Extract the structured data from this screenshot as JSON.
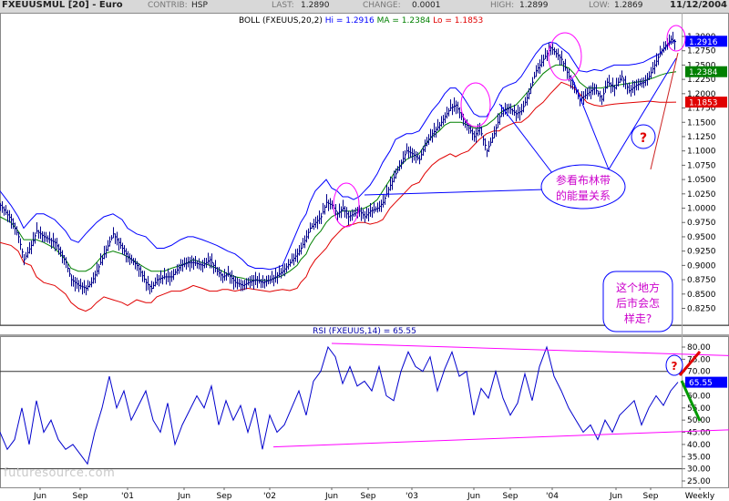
{
  "header": {
    "symbol": "FXEUUSMUL [20] - Euro",
    "contrib_label": "CONTRIB:",
    "contrib_value": "HSP",
    "last_label": "LAST:",
    "last_value": "1.2890",
    "change_label": "CHANGE:",
    "change_value": "0.0001",
    "high_label": "HIGH:",
    "high_value": "1.2899",
    "low_label": "LOW:",
    "low_value": "1.2869",
    "date": "11/12/2004"
  },
  "colors": {
    "price": "#00008b",
    "upper_band": "#0000ff",
    "ma": "#008000",
    "lower_band": "#e00000",
    "rsi": "#0000cd",
    "annotation": "#ff00ff",
    "callout_border": "#0000ff",
    "callout_text": "#cc00cc",
    "question": "#e00000"
  },
  "chart_data": [
    {
      "type": "candlestick",
      "title": "BOLL (FXEUUS,20,2)",
      "legend": [
        {
          "name": "Hi",
          "value": "1.2916"
        },
        {
          "name": "MA",
          "value": "1.2384"
        },
        {
          "name": "Lo",
          "value": "1.1853"
        }
      ],
      "ylim": [
        0.8,
        1.3
      ],
      "y_ticks": [
        "1.3000",
        "1.2750",
        "1.2500",
        "1.2250",
        "1.2000",
        "1.1750",
        "1.1500",
        "1.1250",
        "1.1000",
        "1.0750",
        "1.0500",
        "1.0250",
        "1.0000",
        "0.9750",
        "0.9500",
        "0.9250",
        "0.9000",
        "0.8750",
        "0.8500",
        "0.8250"
      ],
      "x_ticks": [
        "Jun",
        "Sep",
        "'01",
        "Jun",
        "Sep",
        "'02",
        "Jun",
        "Sep",
        "'03",
        "Jun",
        "Sep",
        "'04",
        "Jun",
        "Sep",
        "Weekly"
      ],
      "price_markers": [
        "1.2916",
        "1.2384",
        "1.1853"
      ],
      "x": [
        0,
        12,
        20,
        26,
        34,
        40,
        48,
        60,
        72,
        78,
        86,
        94,
        100,
        106,
        114,
        124,
        134,
        140,
        150,
        160,
        166,
        172,
        180,
        188,
        198,
        206,
        212,
        222,
        230,
        238,
        244,
        250,
        258,
        266,
        272,
        280,
        288,
        296,
        302,
        310,
        318,
        326,
        330,
        336,
        340,
        346,
        352,
        358,
        364,
        370,
        376,
        382,
        388,
        394,
        400,
        406,
        414,
        420,
        428,
        434,
        440,
        446,
        452,
        460,
        466,
        474,
        482,
        488,
        494,
        500,
        506,
        514,
        520,
        526,
        534,
        542,
        548,
        552,
        558,
        566,
        572,
        580,
        588,
        596,
        604,
        610,
        616,
        624,
        630,
        636,
        644,
        652,
        660,
        666,
        674,
        682,
        690,
        698,
        706,
        712,
        718,
        724,
        730,
        736,
        742
      ],
      "close": [
        1.005,
        0.98,
        0.95,
        0.91,
        0.935,
        0.96,
        0.95,
        0.94,
        0.905,
        0.875,
        0.865,
        0.86,
        0.87,
        0.89,
        0.92,
        0.955,
        0.93,
        0.915,
        0.9,
        0.87,
        0.86,
        0.875,
        0.88,
        0.88,
        0.9,
        0.905,
        0.905,
        0.9,
        0.91,
        0.89,
        0.88,
        0.885,
        0.87,
        0.865,
        0.87,
        0.875,
        0.87,
        0.875,
        0.88,
        0.89,
        0.905,
        0.92,
        0.93,
        0.95,
        0.965,
        0.975,
        0.985,
        1.01,
        1.005,
        0.99,
        1.0,
        0.985,
        0.99,
        0.995,
        0.985,
        0.995,
        1.0,
        1.01,
        1.04,
        1.06,
        1.08,
        1.1,
        1.095,
        1.085,
        1.11,
        1.13,
        1.145,
        1.16,
        1.175,
        1.18,
        1.16,
        1.14,
        1.125,
        1.14,
        1.1,
        1.13,
        1.16,
        1.17,
        1.175,
        1.165,
        1.17,
        1.2,
        1.24,
        1.26,
        1.28,
        1.27,
        1.26,
        1.23,
        1.21,
        1.19,
        1.2,
        1.21,
        1.19,
        1.22,
        1.21,
        1.23,
        1.205,
        1.215,
        1.22,
        1.23,
        1.25,
        1.27,
        1.285,
        1.295,
        1.289
      ],
      "upper_band": [
        1.03,
        1.005,
        0.985,
        0.965,
        0.98,
        0.99,
        0.99,
        0.98,
        0.96,
        0.945,
        0.94,
        0.955,
        0.965,
        0.975,
        0.985,
        0.99,
        0.98,
        0.965,
        0.955,
        0.95,
        0.94,
        0.93,
        0.93,
        0.935,
        0.945,
        0.95,
        0.95,
        0.945,
        0.94,
        0.935,
        0.93,
        0.925,
        0.92,
        0.91,
        0.9,
        0.895,
        0.895,
        0.893,
        0.895,
        0.9,
        0.93,
        0.96,
        0.975,
        0.99,
        1.01,
        1.03,
        1.04,
        1.05,
        1.035,
        1.03,
        1.02,
        1.02,
        1.015,
        1.02,
        1.03,
        1.04,
        1.06,
        1.08,
        1.1,
        1.12,
        1.125,
        1.13,
        1.13,
        1.135,
        1.15,
        1.17,
        1.185,
        1.2,
        1.21,
        1.21,
        1.2,
        1.18,
        1.165,
        1.16,
        1.16,
        1.18,
        1.2,
        1.21,
        1.215,
        1.22,
        1.23,
        1.25,
        1.27,
        1.285,
        1.29,
        1.288,
        1.28,
        1.27,
        1.255,
        1.24,
        1.238,
        1.242,
        1.24,
        1.245,
        1.25,
        1.25,
        1.25,
        1.252,
        1.255,
        1.26,
        1.265,
        1.27,
        1.28,
        1.29,
        1.2916
      ],
      "ma": [
        0.985,
        0.975,
        0.96,
        0.945,
        0.945,
        0.945,
        0.94,
        0.93,
        0.91,
        0.895,
        0.89,
        0.89,
        0.895,
        0.905,
        0.92,
        0.925,
        0.92,
        0.915,
        0.905,
        0.895,
        0.89,
        0.89,
        0.89,
        0.895,
        0.9,
        0.905,
        0.91,
        0.905,
        0.9,
        0.895,
        0.89,
        0.885,
        0.88,
        0.878,
        0.875,
        0.874,
        0.874,
        0.874,
        0.878,
        0.882,
        0.89,
        0.9,
        0.91,
        0.92,
        0.935,
        0.95,
        0.96,
        0.975,
        0.985,
        0.99,
        0.995,
        0.995,
        0.995,
        0.998,
        1.0,
        1.005,
        1.015,
        1.03,
        1.05,
        1.065,
        1.075,
        1.085,
        1.09,
        1.095,
        1.11,
        1.125,
        1.135,
        1.145,
        1.15,
        1.15,
        1.15,
        1.145,
        1.14,
        1.14,
        1.145,
        1.155,
        1.165,
        1.17,
        1.175,
        1.18,
        1.19,
        1.205,
        1.22,
        1.235,
        1.245,
        1.25,
        1.25,
        1.245,
        1.235,
        1.22,
        1.21,
        1.21,
        1.21,
        1.212,
        1.214,
        1.216,
        1.218,
        1.22,
        1.222,
        1.225,
        1.228,
        1.232,
        1.235,
        1.237,
        1.2384
      ],
      "lower_band": [
        0.94,
        0.935,
        0.925,
        0.905,
        0.9,
        0.88,
        0.87,
        0.865,
        0.85,
        0.835,
        0.825,
        0.82,
        0.825,
        0.835,
        0.845,
        0.84,
        0.835,
        0.83,
        0.84,
        0.835,
        0.835,
        0.845,
        0.85,
        0.855,
        0.855,
        0.86,
        0.865,
        0.86,
        0.855,
        0.855,
        0.858,
        0.858,
        0.855,
        0.858,
        0.86,
        0.858,
        0.856,
        0.854,
        0.856,
        0.858,
        0.856,
        0.86,
        0.87,
        0.88,
        0.895,
        0.91,
        0.92,
        0.93,
        0.945,
        0.955,
        0.965,
        0.97,
        0.972,
        0.975,
        0.975,
        0.972,
        0.975,
        0.98,
        1.0,
        1.01,
        1.02,
        1.03,
        1.04,
        1.045,
        1.06,
        1.075,
        1.085,
        1.09,
        1.095,
        1.09,
        1.095,
        1.1,
        1.11,
        1.12,
        1.13,
        1.135,
        1.135,
        1.14,
        1.145,
        1.15,
        1.15,
        1.16,
        1.175,
        1.185,
        1.2,
        1.21,
        1.22,
        1.215,
        1.21,
        1.2,
        1.185,
        1.18,
        1.178,
        1.18,
        1.182,
        1.183,
        1.184,
        1.185,
        1.186,
        1.187,
        1.186,
        1.185,
        1.185,
        1.185,
        1.1853
      ]
    },
    {
      "type": "line",
      "title": "RSI (FXEUUS,14) = 65.55",
      "ylim": [
        25,
        85
      ],
      "y_ticks": [
        "80.00",
        "75.00",
        "70.00",
        "65.00",
        "60.00",
        "55.00",
        "50.00",
        "45.00",
        "40.00",
        "35.00",
        "30.00",
        "25.00"
      ],
      "reference_lines": [
        70,
        30
      ],
      "last_value_label": "65.55",
      "x": [
        0,
        8,
        16,
        24,
        32,
        40,
        48,
        56,
        64,
        72,
        80,
        88,
        96,
        104,
        112,
        120,
        128,
        136,
        144,
        152,
        160,
        168,
        176,
        184,
        192,
        200,
        208,
        216,
        224,
        232,
        240,
        248,
        256,
        264,
        272,
        280,
        288,
        296,
        304,
        312,
        320,
        328,
        336,
        344,
        352,
        360,
        368,
        376,
        384,
        392,
        400,
        408,
        416,
        424,
        432,
        440,
        448,
        456,
        464,
        472,
        480,
        488,
        496,
        504,
        512,
        520,
        528,
        536,
        544,
        552,
        560,
        568,
        576,
        584,
        592,
        600,
        608,
        616,
        624,
        632,
        640,
        648,
        656,
        664,
        672,
        680,
        688,
        696,
        704,
        712,
        720,
        728,
        736,
        744
      ],
      "values": [
        45,
        38,
        42,
        55,
        40,
        58,
        45,
        50,
        42,
        38,
        40,
        36,
        32,
        45,
        55,
        68,
        55,
        62,
        50,
        56,
        62,
        50,
        45,
        57,
        40,
        48,
        54,
        60,
        55,
        64,
        48,
        58,
        50,
        56,
        45,
        55,
        38,
        52,
        45,
        48,
        55,
        62,
        52,
        66,
        70,
        80,
        76,
        65,
        72,
        64,
        66,
        62,
        72,
        60,
        58,
        70,
        78,
        72,
        70,
        76,
        62,
        71,
        78,
        68,
        70,
        52,
        63,
        59,
        70,
        59,
        52,
        57,
        69,
        58,
        72,
        80,
        68,
        62,
        55,
        50,
        45,
        48,
        42,
        50,
        45,
        52,
        55,
        58,
        48,
        55,
        60,
        56,
        62,
        65.55
      ],
      "trendlines": [
        {
          "x": [
            364,
            800
          ],
          "values": [
            81.5,
            76.5
          ]
        },
        {
          "x": [
            300,
            800
          ],
          "values": [
            39,
            46
          ]
        }
      ]
    }
  ],
  "annotations": {
    "callout1": "参看布林带的能量关系",
    "callout2": "这个地方后市会怎样走?",
    "question_mark": "?",
    "watermark": "futuresource.com"
  }
}
